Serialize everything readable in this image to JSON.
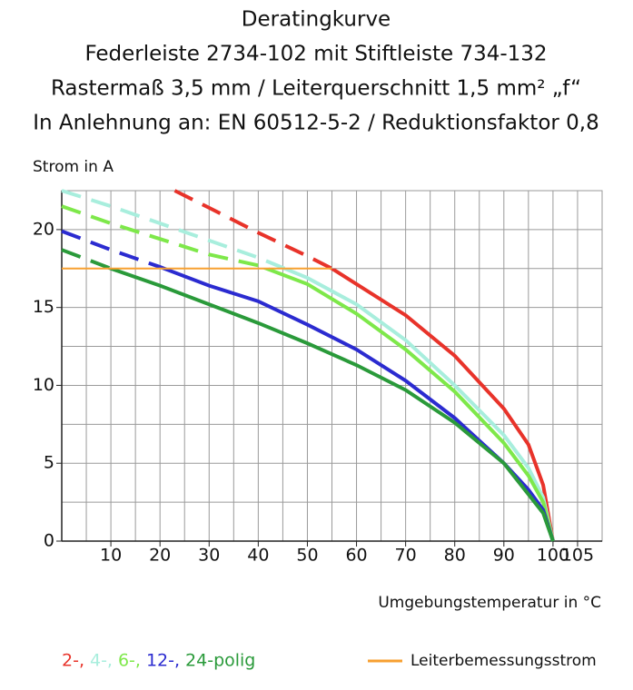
{
  "chart_data": {
    "type": "line",
    "title_lines": [
      "Deratingkurve",
      "Federleiste 2734-102 mit Stiftleiste 734-132",
      "Rastermaß 3,5 mm / Leiterquerschnitt 1,5 mm² „f“",
      "In Anlehnung an: EN 60512-5-2 / Reduktionsfaktor 0,8"
    ],
    "y_label": "Strom in A",
    "x_label": "Umgebungstemperatur in °C",
    "xlim": [
      0,
      110
    ],
    "ylim": [
      0,
      22.5
    ],
    "xticks": [
      10,
      20,
      30,
      40,
      50,
      60,
      70,
      80,
      90,
      100,
      105
    ],
    "yticks": [
      0,
      5,
      10,
      15,
      20
    ],
    "xgrid": [
      5,
      10,
      15,
      20,
      25,
      30,
      35,
      40,
      45,
      50,
      55,
      60,
      65,
      70,
      75,
      80,
      85,
      90,
      95,
      100,
      105
    ],
    "ygrid": [
      2.5,
      5,
      7.5,
      10,
      12.5,
      15,
      17.5,
      20
    ],
    "grid": true,
    "rated_current": {
      "name": "Leiterbemessungsstrom",
      "value": 17.5,
      "x": [
        0,
        55
      ],
      "color": "#f7a030"
    },
    "series": [
      {
        "name": "2-,",
        "color": "#e8332a",
        "x": [
          23,
          30,
          40,
          50,
          55,
          60,
          70,
          80,
          90,
          95,
          98,
          100
        ],
        "values": [
          22.5,
          21.4,
          19.8,
          18.3,
          17.5,
          16.5,
          14.5,
          11.9,
          8.5,
          6.2,
          3.6,
          0
        ]
      },
      {
        "name": "4-,",
        "color": "#a8eedd",
        "x": [
          0,
          10,
          20,
          30,
          40,
          50,
          60,
          70,
          80,
          90,
          95,
          98,
          100
        ],
        "values": [
          22.5,
          21.5,
          20.4,
          19.3,
          18.2,
          16.9,
          15.2,
          12.9,
          10.0,
          6.8,
          4.7,
          2.8,
          0
        ]
      },
      {
        "name": "6-,",
        "color": "#7ee84a",
        "x": [
          0,
          10,
          20,
          30,
          40,
          50,
          60,
          70,
          80,
          90,
          95,
          98,
          100
        ],
        "values": [
          21.5,
          20.4,
          19.4,
          18.4,
          17.7,
          16.5,
          14.6,
          12.3,
          9.6,
          6.3,
          4.2,
          2.5,
          0
        ]
      },
      {
        "name": "12-,",
        "color": "#2b2bd0",
        "x": [
          0,
          10,
          20,
          30,
          40,
          50,
          60,
          70,
          80,
          90,
          95,
          98,
          100
        ],
        "values": [
          19.9,
          18.7,
          17.6,
          16.4,
          15.4,
          13.9,
          12.3,
          10.3,
          7.9,
          5.0,
          3.3,
          2.0,
          0
        ]
      },
      {
        "name": "24-polig",
        "color": "#2a9a3a",
        "x": [
          0,
          10,
          20,
          30,
          40,
          50,
          60,
          70,
          80,
          90,
          95,
          98,
          100
        ],
        "values": [
          18.7,
          17.5,
          16.4,
          15.2,
          14.0,
          12.7,
          11.3,
          9.7,
          7.6,
          5.0,
          3.0,
          1.8,
          0
        ]
      }
    ]
  }
}
